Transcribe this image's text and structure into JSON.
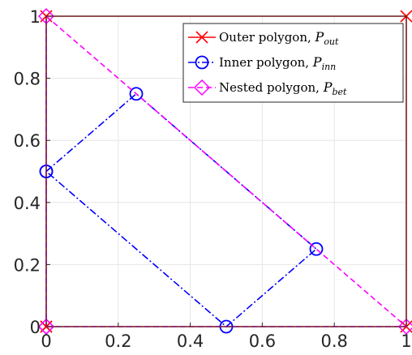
{
  "chart_data": {
    "type": "line",
    "xlim": [
      0,
      1
    ],
    "ylim": [
      0,
      1
    ],
    "x_ticks": [
      "0",
      "0.2",
      "0.4",
      "0.6",
      "0.8",
      "1"
    ],
    "y_ticks": [
      "0",
      "0.2",
      "0.4",
      "0.6",
      "0.8",
      "1"
    ],
    "grid": true,
    "legend_position": "top-right",
    "series": [
      {
        "name_prefix": "Outer polygon, ",
        "name_symbol": "P",
        "name_subscript": "out",
        "color": "#ff0000",
        "line_style": "solid",
        "marker": "x",
        "points": [
          [
            0,
            0
          ],
          [
            1,
            0
          ],
          [
            1,
            1
          ],
          [
            0,
            1
          ],
          [
            0,
            0
          ]
        ]
      },
      {
        "name_prefix": "Inner polygon, ",
        "name_symbol": "P",
        "name_subscript": "inn",
        "color": "#0000ff",
        "line_style": "dashdot",
        "marker": "o",
        "points": [
          [
            0,
            0.5
          ],
          [
            0.25,
            0.75
          ],
          [
            0.75,
            0.25
          ],
          [
            0.5,
            0
          ],
          [
            0,
            0.5
          ]
        ]
      },
      {
        "name_prefix": "Nested polygon, ",
        "name_symbol": "P",
        "name_subscript": "bet",
        "color": "#ff00ff",
        "line_style": "dashed",
        "marker": "diamond",
        "points": [
          [
            0,
            0
          ],
          [
            1,
            0
          ],
          [
            0,
            1
          ],
          [
            0,
            0
          ]
        ]
      }
    ]
  }
}
